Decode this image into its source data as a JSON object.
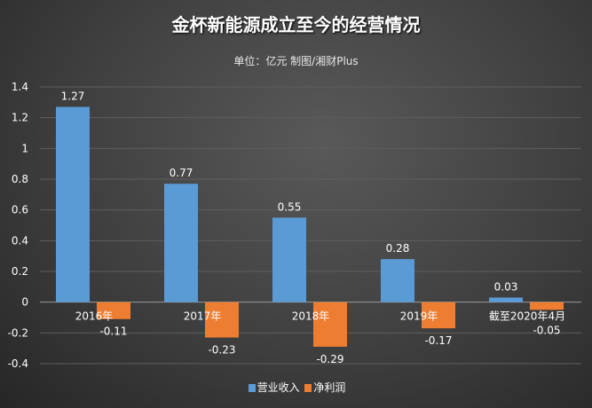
{
  "chart_data": {
    "type": "bar",
    "title": "金杯新能源成立至今的经营情况",
    "subtitle": "单位：亿元 制图/湘财Plus",
    "categories": [
      "2016年",
      "2017年",
      "2018年",
      "2019年",
      "截至2020年4月"
    ],
    "series": [
      {
        "name": "营业收入",
        "color": "#5b9bd5",
        "values": [
          1.27,
          0.77,
          0.55,
          0.28,
          0.03
        ]
      },
      {
        "name": "净利润",
        "color": "#ed7d31",
        "values": [
          -0.11,
          -0.23,
          -0.29,
          -0.17,
          -0.05
        ]
      }
    ],
    "ylim": [
      -0.4,
      1.4
    ],
    "yticks": [
      -0.4,
      -0.2,
      0,
      0.2,
      0.4,
      0.6,
      0.8,
      1,
      1.2,
      1.4
    ],
    "grid": true,
    "legend": "bottom"
  }
}
